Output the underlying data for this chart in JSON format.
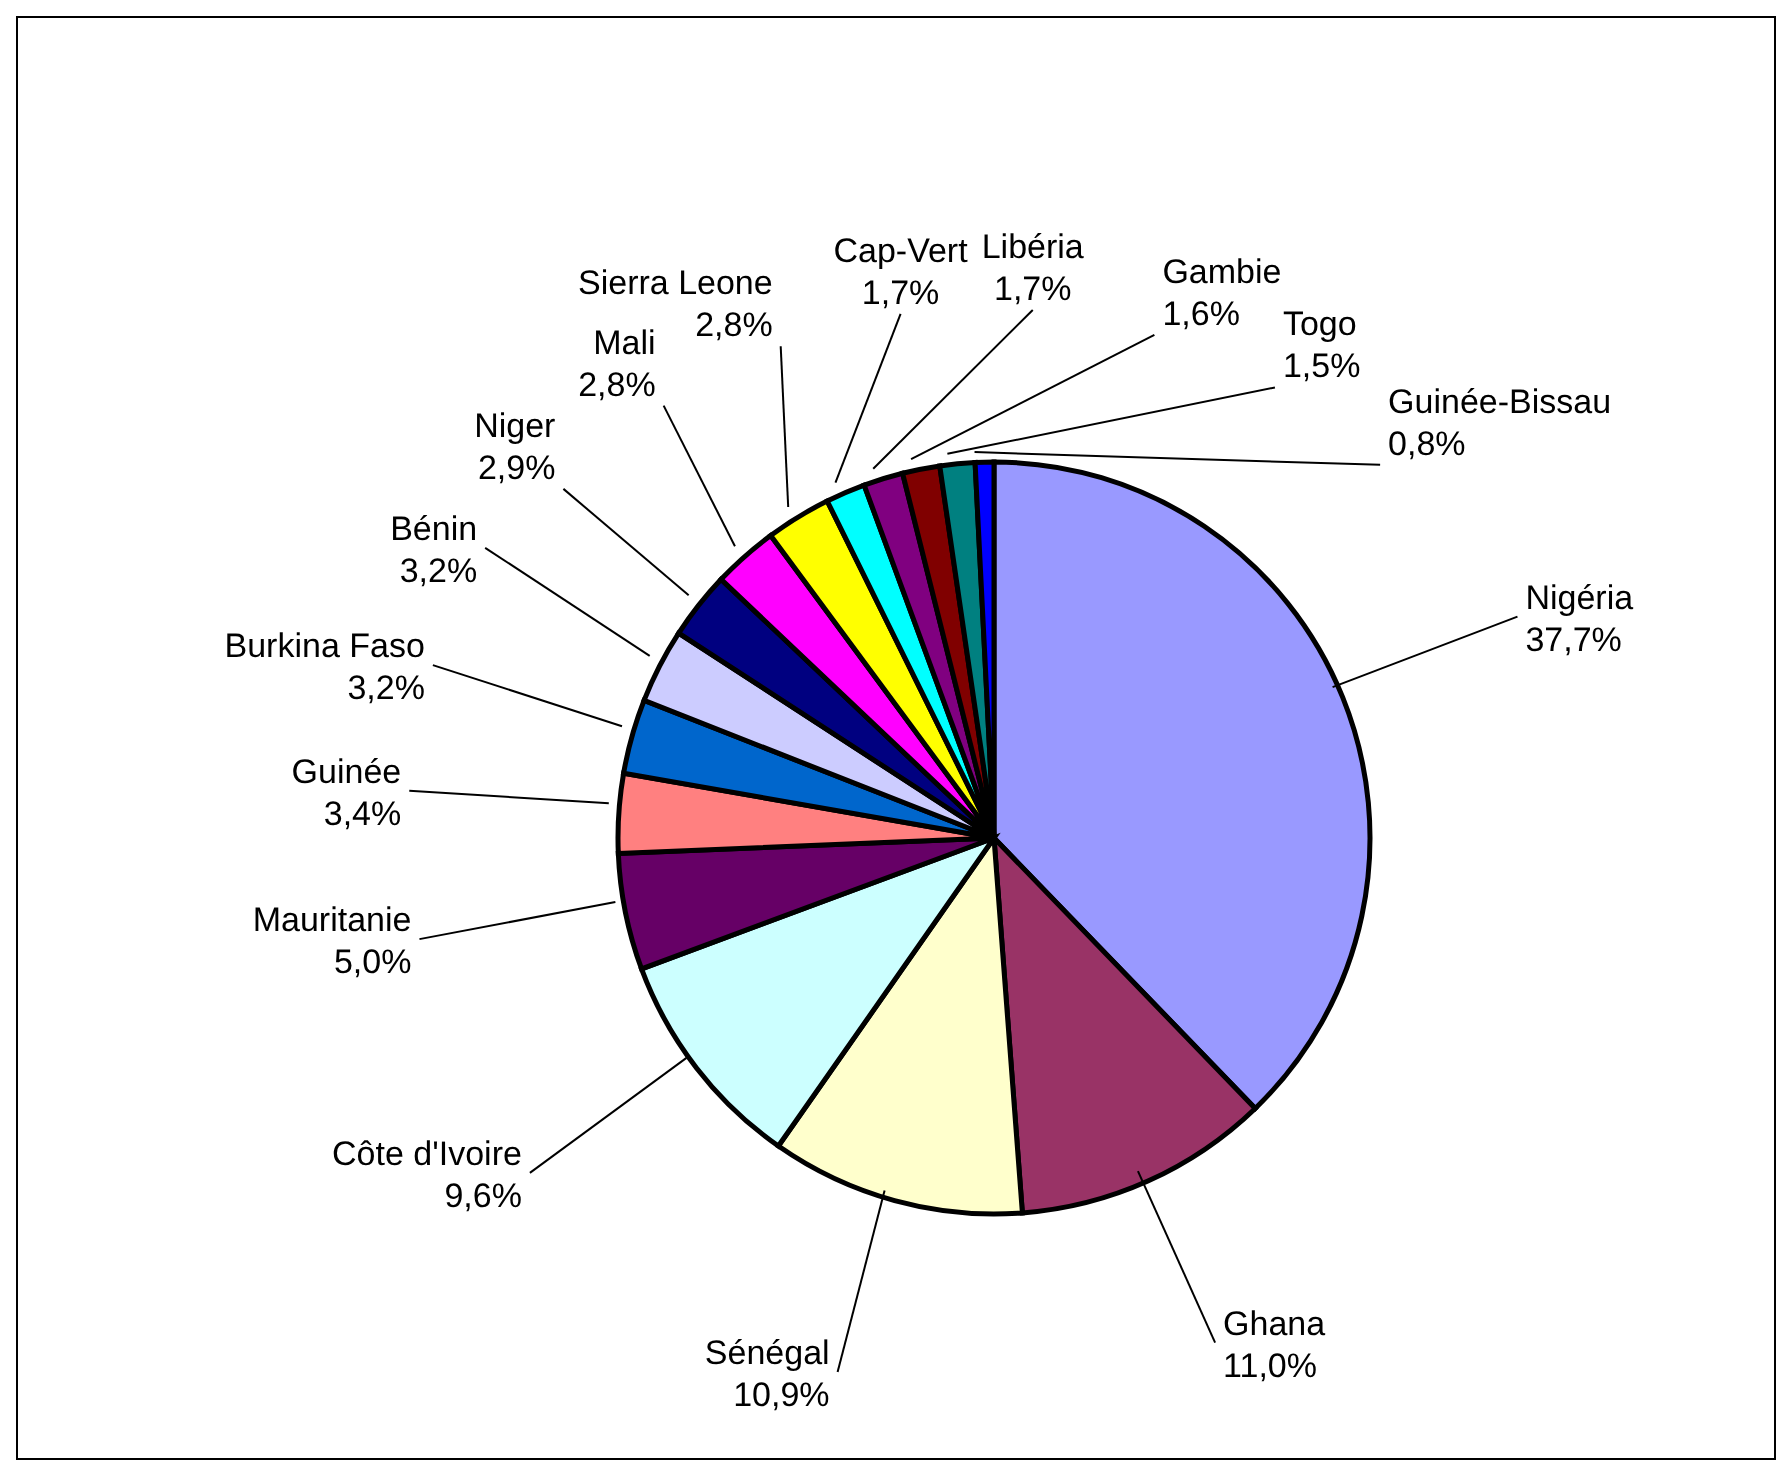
{
  "chart_data": {
    "type": "pie",
    "categories": [
      "Nigéria",
      "Ghana",
      "Sénégal",
      "Côte d'Ivoire",
      "Mauritanie",
      "Guinée",
      "Burkina Faso",
      "Bénin",
      "Niger",
      "Mali",
      "Sierra Leone",
      "Cap-Vert",
      "Libéria",
      "Gambie",
      "Togo",
      "Guinée-Bissau"
    ],
    "values": [
      37.7,
      11.0,
      10.9,
      9.6,
      5.0,
      3.4,
      3.2,
      3.2,
      2.9,
      2.8,
      2.8,
      1.7,
      1.7,
      1.6,
      1.5,
      0.8
    ],
    "value_labels": [
      "37,7%",
      "11,0%",
      "10,9%",
      "9,6%",
      "5,0%",
      "3,4%",
      "3,2%",
      "3,2%",
      "2,9%",
      "2,8%",
      "2,8%",
      "1,7%",
      "1,7%",
      "1,6%",
      "1,5%",
      "0,8%"
    ],
    "colors": [
      "#9999ff",
      "#993366",
      "#ffffcc",
      "#ccffff",
      "#660066",
      "#ff8080",
      "#0066cc",
      "#ccccff",
      "#000080",
      "#ff00ff",
      "#ffff00",
      "#00ffff",
      "#800080",
      "#800000",
      "#008080",
      "#0000ff"
    ],
    "legend": false
  }
}
